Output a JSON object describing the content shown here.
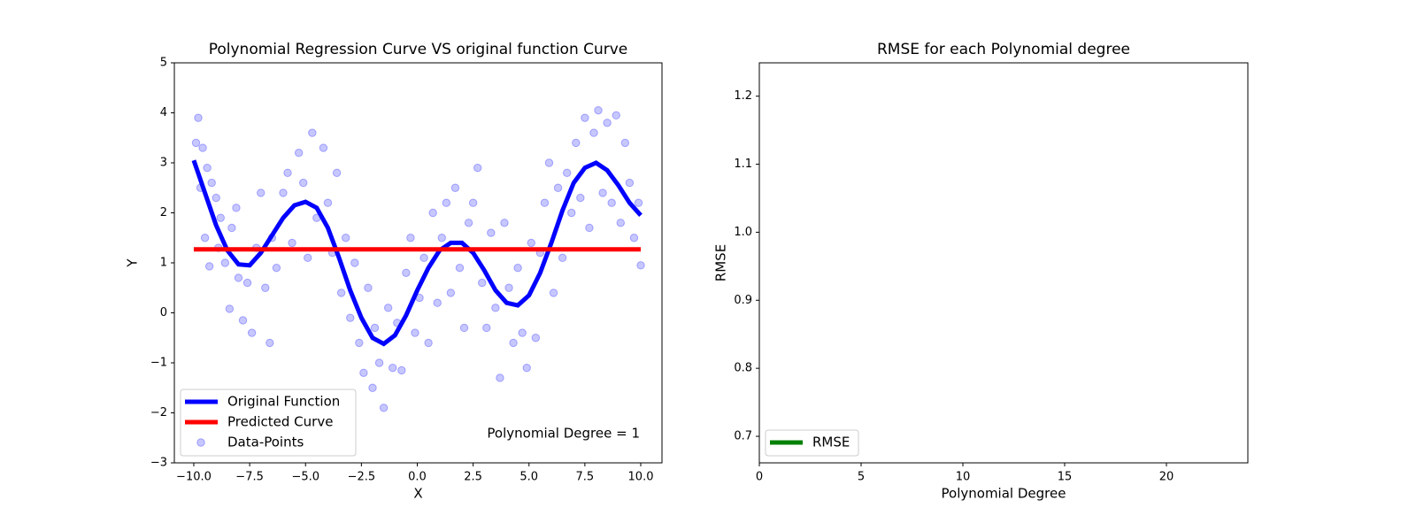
{
  "chart_data": [
    {
      "type": "line",
      "title": "Polynomial Regression Curve VS original function Curve",
      "xlabel": "X",
      "ylabel": "Y",
      "xlim": [
        -10.87,
        10.95
      ],
      "ylim": [
        -3,
        5
      ],
      "xticks": [
        {
          "value": -10,
          "label": "−10.0"
        },
        {
          "value": -7.5,
          "label": "−7.5"
        },
        {
          "value": -5,
          "label": "−5.0"
        },
        {
          "value": -2.5,
          "label": "−2.5"
        },
        {
          "value": 0,
          "label": "0.0"
        },
        {
          "value": 2.5,
          "label": "2.5"
        },
        {
          "value": 5,
          "label": "5.0"
        },
        {
          "value": 7.5,
          "label": "7.5"
        },
        {
          "value": 10,
          "label": "10.0"
        }
      ],
      "yticks": [
        {
          "value": -3,
          "label": "−3"
        },
        {
          "value": -2,
          "label": "−2"
        },
        {
          "value": -1,
          "label": "−1"
        },
        0,
        1,
        2,
        3,
        4,
        5
      ],
      "legend": "lower left",
      "annotation": "Polynomial Degree = 1",
      "series": [
        {
          "name": "Original Function",
          "type": "line",
          "color": "#0000ff",
          "x": [
            -10,
            -9.5,
            -9,
            -8.5,
            -8,
            -7.5,
            -7,
            -6.5,
            -6,
            -5.5,
            -5,
            -4.5,
            -4,
            -3.5,
            -3,
            -2.5,
            -2,
            -1.5,
            -1,
            -0.5,
            0,
            0.5,
            1,
            1.5,
            2,
            2.5,
            3,
            3.5,
            4,
            4.5,
            5,
            5.5,
            6,
            6.5,
            7,
            7.5,
            8,
            8.5,
            9,
            9.5,
            10
          ],
          "values": [
            3.05,
            2.4,
            1.75,
            1.25,
            0.97,
            0.95,
            1.2,
            1.55,
            1.9,
            2.15,
            2.22,
            2.1,
            1.7,
            1.1,
            0.45,
            -0.1,
            -0.5,
            -0.62,
            -0.45,
            -0.05,
            0.45,
            0.9,
            1.25,
            1.4,
            1.4,
            1.2,
            0.85,
            0.45,
            0.2,
            0.15,
            0.35,
            0.8,
            1.4,
            2.05,
            2.6,
            2.9,
            3.0,
            2.85,
            2.55,
            2.2,
            1.95
          ]
        },
        {
          "name": "Predicted Curve",
          "type": "line",
          "color": "#ff0000",
          "x": [
            -10,
            10
          ],
          "values": [
            1.27,
            1.27
          ]
        },
        {
          "name": "Data-Points",
          "type": "scatter",
          "color": "#0000ff",
          "x": [
            -9.9,
            -9.8,
            -9.7,
            -9.6,
            -9.5,
            -9.4,
            -9.3,
            -9.2,
            -9.0,
            -8.9,
            -8.8,
            -8.6,
            -8.4,
            -8.3,
            -8.1,
            -8.0,
            -7.8,
            -7.6,
            -7.4,
            -7.2,
            -7.0,
            -6.8,
            -6.6,
            -6.5,
            -6.3,
            -6.0,
            -5.8,
            -5.6,
            -5.3,
            -5.1,
            -4.9,
            -4.7,
            -4.5,
            -4.2,
            -4.0,
            -3.8,
            -3.6,
            -3.4,
            -3.2,
            -3.0,
            -2.8,
            -2.6,
            -2.4,
            -2.2,
            -2.0,
            -1.9,
            -1.7,
            -1.5,
            -1.3,
            -1.1,
            -0.9,
            -0.7,
            -0.5,
            -0.3,
            -0.1,
            0.1,
            0.3,
            0.5,
            0.7,
            0.9,
            1.1,
            1.3,
            1.5,
            1.7,
            1.9,
            2.1,
            2.3,
            2.5,
            2.7,
            2.9,
            3.1,
            3.3,
            3.5,
            3.7,
            3.9,
            4.1,
            4.3,
            4.5,
            4.7,
            4.9,
            5.1,
            5.3,
            5.5,
            5.7,
            5.9,
            6.1,
            6.3,
            6.5,
            6.7,
            6.9,
            7.1,
            7.3,
            7.5,
            7.7,
            7.9,
            8.1,
            8.3,
            8.5,
            8.7,
            8.9,
            9.1,
            9.3,
            9.5,
            9.7,
            9.9,
            10.0
          ],
          "values": [
            3.4,
            3.9,
            2.5,
            3.3,
            1.5,
            2.9,
            0.93,
            2.6,
            2.3,
            1.3,
            1.9,
            1.0,
            0.08,
            1.7,
            2.1,
            0.7,
            -0.15,
            0.6,
            -0.4,
            1.3,
            2.4,
            0.5,
            -0.6,
            1.5,
            0.9,
            2.4,
            2.8,
            1.4,
            3.2,
            2.6,
            1.1,
            3.6,
            1.9,
            3.3,
            2.2,
            1.2,
            2.8,
            0.4,
            1.5,
            -0.1,
            1.0,
            -0.6,
            -1.2,
            0.5,
            -1.5,
            -0.3,
            -1.0,
            -1.9,
            0.1,
            -1.1,
            -0.2,
            -1.15,
            0.8,
            1.5,
            -0.4,
            0.3,
            1.1,
            -0.6,
            2.0,
            0.2,
            1.5,
            2.2,
            0.4,
            2.5,
            0.9,
            -0.3,
            1.8,
            2.2,
            2.9,
            0.6,
            -0.3,
            1.6,
            0.1,
            -1.3,
            1.8,
            0.5,
            -0.6,
            0.9,
            -0.4,
            -1.1,
            1.4,
            -0.5,
            1.2,
            2.2,
            3.0,
            0.4,
            2.5,
            1.1,
            2.8,
            2.0,
            3.4,
            2.3,
            3.9,
            1.7,
            3.6,
            4.05,
            2.4,
            3.8,
            2.2,
            3.95,
            1.8,
            3.4,
            2.6,
            1.5,
            2.2,
            0.95
          ]
        }
      ]
    },
    {
      "type": "line",
      "title": "RMSE for each Polynomial degree",
      "xlabel": "Polynomial Degree",
      "ylabel": "RMSE",
      "xlim": [
        0,
        24
      ],
      "ylim": [
        0.661,
        1.249
      ],
      "xticks": [
        0,
        5,
        10,
        15,
        20
      ],
      "yticks": [
        0.7,
        0.8,
        0.9,
        {
          "value": 1,
          "label": "1.0"
        },
        1.1,
        1.2
      ],
      "legend": "lower left",
      "series": [
        {
          "name": "RMSE",
          "type": "line",
          "color": "#008000",
          "x": [],
          "values": []
        }
      ]
    }
  ]
}
